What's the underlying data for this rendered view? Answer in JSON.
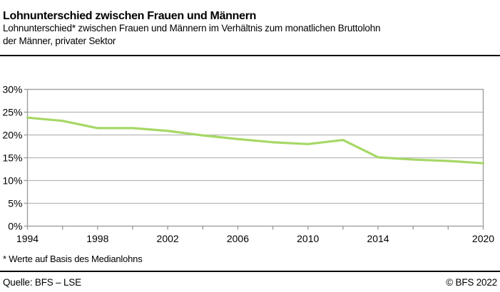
{
  "page": {
    "title": "Lohnunterschied zwischen Frauen und Männern",
    "subtitle": "Lohnunterschied* zwischen Frauen und Männern  im Verhältnis zum monatlichen Bruttolohn\nder Männer, privater Sektor",
    "footnote": "* Werte auf Basis des Medianlohns",
    "source": "Quelle: BFS – LSE",
    "copyright": "© BFS 2022"
  },
  "colors": {
    "line_green": "#a6d866",
    "grid_gray": "#b7b7b7",
    "axis_gray": "#9e9e9e",
    "text_black": "#000000"
  },
  "chart_data": {
    "type": "line",
    "x": [
      1994,
      1996,
      1998,
      2000,
      2002,
      2004,
      2006,
      2008,
      2010,
      2012,
      2014,
      2016,
      2018,
      2020
    ],
    "values": [
      23.8,
      23.1,
      21.5,
      21.5,
      20.9,
      19.9,
      19.1,
      18.4,
      18.0,
      18.9,
      15.1,
      14.6,
      14.3,
      13.8
    ],
    "x_tick_labels": [
      1994,
      1998,
      2002,
      2006,
      2010,
      2014,
      2020
    ],
    "y_ticks": [
      0,
      5,
      10,
      15,
      20,
      25,
      30
    ],
    "y_tick_suffix": "%",
    "xlim": [
      1994,
      2020
    ],
    "ylim": [
      0,
      30
    ],
    "grid": "horizontal",
    "legend": "none",
    "title": "Lohnunterschied zwischen Frauen und Männern",
    "xlabel": "",
    "ylabel": ""
  }
}
